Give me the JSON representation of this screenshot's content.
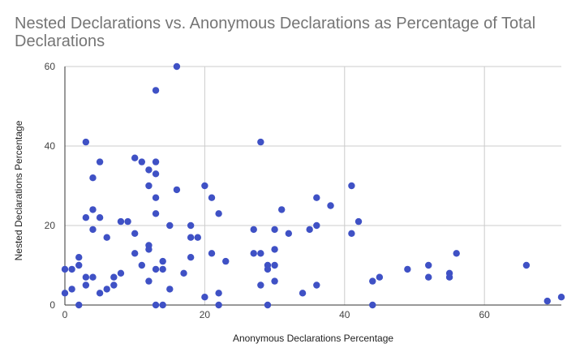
{
  "chart_data": {
    "type": "scatter",
    "title": "Nested Declarations vs. Anonymous Declarations as Percentage of Total Declarations",
    "xlabel": "Anonymous Declarations Percentage",
    "ylabel": "Nested Declarations Percentage",
    "xlim": [
      0,
      71
    ],
    "ylim": [
      0,
      60
    ],
    "x_ticks": [
      0,
      20,
      40,
      60
    ],
    "y_ticks": [
      0,
      20,
      40,
      60
    ],
    "grid": true,
    "legend": "none",
    "point_color": "#3f51c5",
    "points": [
      [
        0,
        9
      ],
      [
        0,
        3
      ],
      [
        1,
        9
      ],
      [
        1,
        4
      ],
      [
        2,
        12
      ],
      [
        2,
        10
      ],
      [
        2,
        0
      ],
      [
        3,
        41
      ],
      [
        3,
        22
      ],
      [
        3,
        7
      ],
      [
        3,
        5
      ],
      [
        4,
        32
      ],
      [
        4,
        24
      ],
      [
        4,
        19
      ],
      [
        4,
        7
      ],
      [
        5,
        36
      ],
      [
        5,
        22
      ],
      [
        5,
        3
      ],
      [
        6,
        17
      ],
      [
        6,
        4
      ],
      [
        7,
        7
      ],
      [
        7,
        5
      ],
      [
        8,
        21
      ],
      [
        8,
        8
      ],
      [
        9,
        21
      ],
      [
        10,
        37
      ],
      [
        10,
        18
      ],
      [
        10,
        13
      ],
      [
        11,
        36
      ],
      [
        11,
        10
      ],
      [
        12,
        34
      ],
      [
        12,
        30
      ],
      [
        12,
        15
      ],
      [
        12,
        14
      ],
      [
        12,
        6
      ],
      [
        13,
        54
      ],
      [
        13,
        36
      ],
      [
        13,
        33
      ],
      [
        13,
        27
      ],
      [
        13,
        23
      ],
      [
        13,
        9
      ],
      [
        13,
        0
      ],
      [
        14,
        11
      ],
      [
        14,
        9
      ],
      [
        14,
        0
      ],
      [
        15,
        20
      ],
      [
        15,
        4
      ],
      [
        16,
        60
      ],
      [
        16,
        29
      ],
      [
        17,
        8
      ],
      [
        18,
        20
      ],
      [
        18,
        17
      ],
      [
        18,
        12
      ],
      [
        19,
        17
      ],
      [
        20,
        30
      ],
      [
        20,
        2
      ],
      [
        21,
        27
      ],
      [
        21,
        13
      ],
      [
        22,
        23
      ],
      [
        22,
        3
      ],
      [
        22,
        0
      ],
      [
        23,
        11
      ],
      [
        27,
        19
      ],
      [
        27,
        13
      ],
      [
        28,
        41
      ],
      [
        28,
        13
      ],
      [
        28,
        5
      ],
      [
        29,
        10
      ],
      [
        29,
        9
      ],
      [
        29,
        0
      ],
      [
        30,
        19
      ],
      [
        30,
        14
      ],
      [
        30,
        10
      ],
      [
        30,
        6
      ],
      [
        31,
        24
      ],
      [
        32,
        18
      ],
      [
        34,
        3
      ],
      [
        35,
        19
      ],
      [
        36,
        27
      ],
      [
        36,
        20
      ],
      [
        36,
        5
      ],
      [
        38,
        25
      ],
      [
        41,
        30
      ],
      [
        41,
        18
      ],
      [
        42,
        21
      ],
      [
        44,
        6
      ],
      [
        44,
        0
      ],
      [
        45,
        7
      ],
      [
        49,
        9
      ],
      [
        52,
        10
      ],
      [
        52,
        7
      ],
      [
        55,
        8
      ],
      [
        55,
        7
      ],
      [
        56,
        13
      ],
      [
        66,
        10
      ],
      [
        69,
        1
      ],
      [
        71,
        2
      ]
    ]
  }
}
